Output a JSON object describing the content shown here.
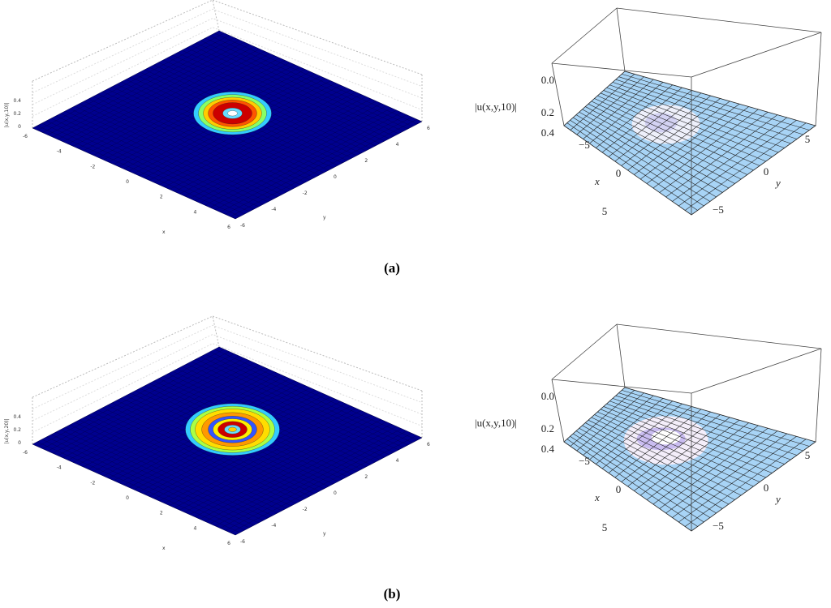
{
  "panels": [
    {
      "caption": "(a)",
      "left": {
        "zlabel": "|u(x,y,10)|",
        "zticks": [
          "0.4",
          "0.2",
          "0"
        ],
        "xticks": [
          "-6",
          "-4",
          "-2",
          "0",
          "2",
          "4",
          "6"
        ],
        "yticks": [
          "-6",
          "-4",
          "-2",
          "0",
          "2",
          "4",
          "6"
        ],
        "xlabel": "x",
        "ylabel": "y"
      },
      "right": {
        "zlabel": "|u(x,y,10)|",
        "zticks": [
          "0.4",
          "0.2",
          "0.0"
        ],
        "xticks": [
          "−5",
          "0",
          "5"
        ],
        "yticks": [
          "0",
          "5",
          "−5"
        ],
        "xlabel": "x",
        "ylabel": "y"
      }
    },
    {
      "caption": "(b)",
      "left": {
        "zlabel": "|u(x,y,20)|",
        "zticks": [
          "0.4",
          "0.2",
          "0"
        ],
        "xticks": [
          "-6",
          "-4",
          "-2",
          "0",
          "2",
          "4",
          "6"
        ],
        "yticks": [
          "-6",
          "-4",
          "-2",
          "0",
          "2",
          "4",
          "6"
        ],
        "xlabel": "x",
        "ylabel": "y"
      },
      "right": {
        "zlabel": "|u(x,y,10)|",
        "zticks": [
          "0.4",
          "0.2",
          "0.0"
        ],
        "xticks": [
          "−5",
          "0",
          "5"
        ],
        "yticks": [
          "0",
          "5",
          "−5"
        ],
        "xlabel": "x",
        "ylabel": "y"
      }
    }
  ]
}
